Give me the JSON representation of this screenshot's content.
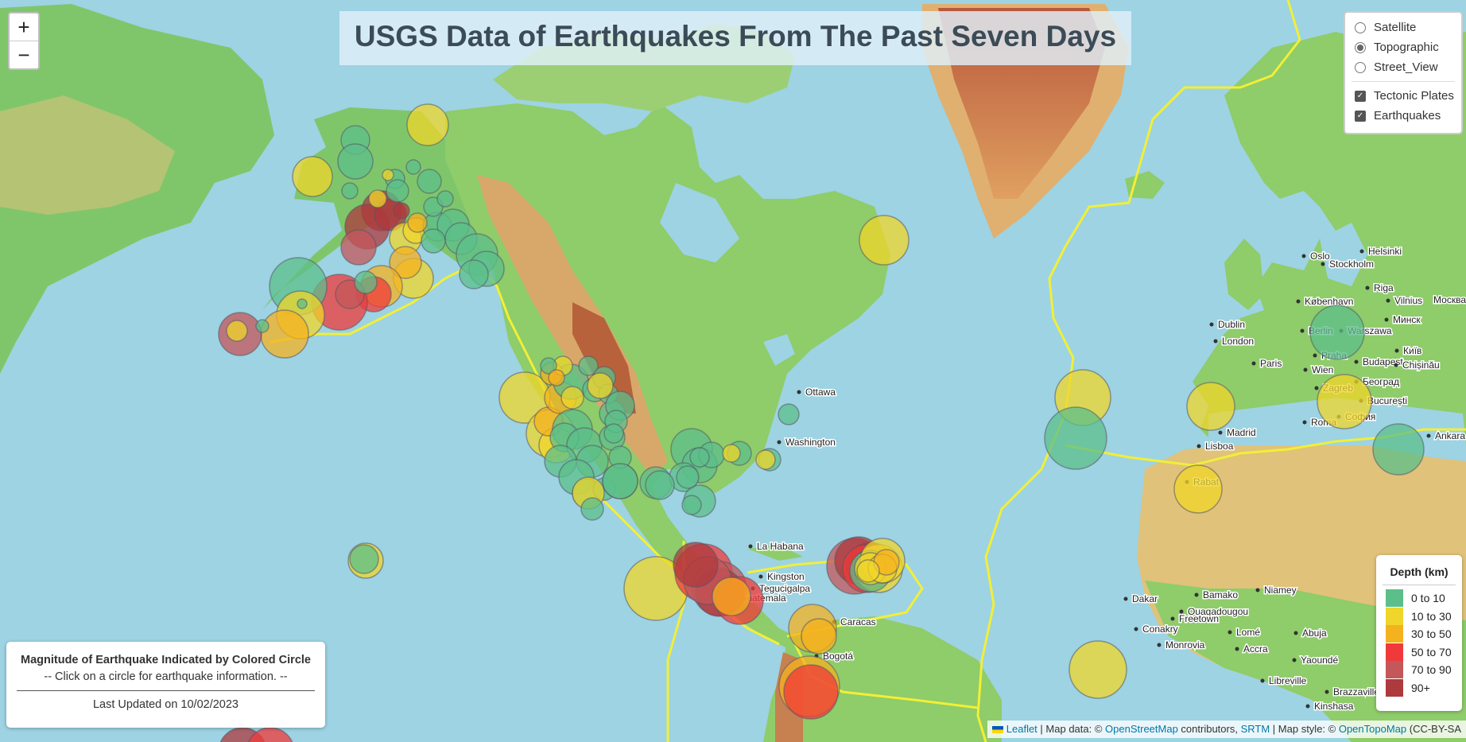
{
  "title": "USGS Data of Earthquakes From The Past Seven Days",
  "zoom": {
    "in": "+",
    "out": "−"
  },
  "layer_control": {
    "base_layers": [
      {
        "label": "Satellite",
        "selected": false
      },
      {
        "label": "Topographic",
        "selected": true
      },
      {
        "label": "Street_View",
        "selected": false
      }
    ],
    "overlays": [
      {
        "label": "Tectonic Plates",
        "checked": true
      },
      {
        "label": "Earthquakes",
        "checked": true
      }
    ]
  },
  "info_box": {
    "heading": "Magnitude of Earthquake Indicated by Colored Circle",
    "subtext": "-- Click on a circle for earthquake information. --",
    "updated": "Last Updated on 10/02/2023"
  },
  "legend": {
    "title": "Depth (km)",
    "items": [
      {
        "label": "0 to 10",
        "color": "#5cbf8a"
      },
      {
        "label": "10 to 30",
        "color": "#f0d62a"
      },
      {
        "label": "30 to 50",
        "color": "#f5b21f"
      },
      {
        "label": "50 to 70",
        "color": "#f0393a"
      },
      {
        "label": "70 to 90",
        "color": "#c4575a"
      },
      {
        "label": "90+",
        "color": "#ad3a3d"
      }
    ]
  },
  "attribution": {
    "leaflet": "Leaflet",
    "t1": " | Map data: © ",
    "osm": "OpenStreetMap",
    "t2": " contributors, ",
    "srtm": "SRTM",
    "t3": " | Map style: © ",
    "otm": "OpenTopoMap",
    "t4": " (CC-BY-SA"
  },
  "place_labels": [
    "Ottawa",
    "Washington",
    "La Habana",
    "Kingston",
    "Tegucigalpa",
    "Guatemala",
    "Caracas",
    "Bogotá",
    "Oslo",
    "Helsinki",
    "Stockholm",
    "Riga",
    "København",
    "Vilnius",
    "Dublin",
    "Минск",
    "London",
    "Berlin",
    "Warszawa",
    "Paris",
    "Praha",
    "Київ",
    "Wien",
    "Budapest",
    "Chișinău",
    "Zagreb",
    "Београд",
    "București",
    "Madrid",
    "Roma",
    "София",
    "Lisboa",
    "Ankara",
    "Rabat",
    "Dakar",
    "Bamako",
    "Niamey",
    "Ouagadougou",
    "Conakry",
    "Freetown",
    "Monrovia",
    "Accra",
    "Abuja",
    "Lomé",
    "Yaoundé",
    "Libreville",
    "Brazzaville",
    "Kinshasa",
    "Москва"
  ]
}
